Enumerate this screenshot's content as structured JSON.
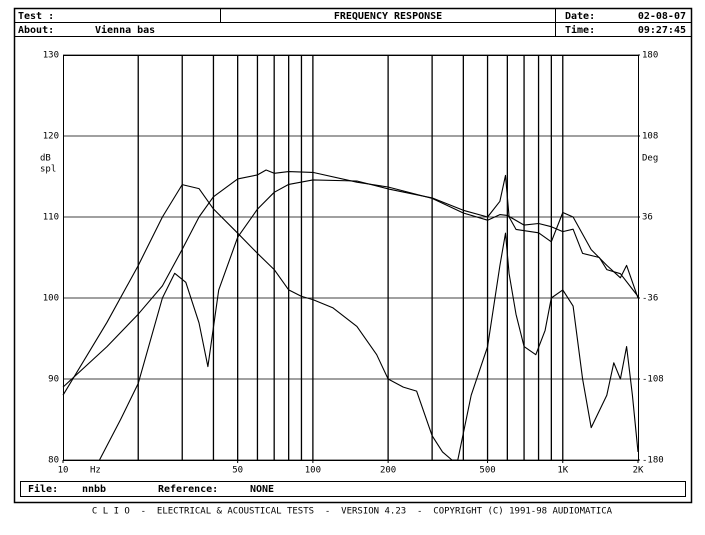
{
  "header": {
    "test_label": "Test :",
    "about_label": "About:",
    "about": "Vienna bas",
    "date_label": "Date:",
    "date": "02-08-07",
    "time_label": "Time:",
    "time": "09:27:45"
  },
  "footer": {
    "file_label": "File:",
    "file": "nnbb",
    "reference_label": "Reference:",
    "reference": "NONE",
    "copyright": "C L I O  -  ELECTRICAL & ACOUSTICAL TESTS  -  VERSION 4.23  -  COPYRIGHT (C) 1991-98 AUDIOMATICA"
  },
  "chart_data": {
    "type": "line",
    "title": "FREQUENCY RESPONSE",
    "ylabel": [
      "dB",
      "spl"
    ],
    "y2label": "Deg",
    "xlabel": "Hz",
    "log_x": true,
    "grid": true,
    "color": "#000000",
    "xlim": [
      10,
      2000
    ],
    "xticks": [
      10,
      50,
      100,
      200,
      500,
      {
        "value": 1000,
        "label": "1K"
      },
      {
        "value": 2000,
        "label": "2K"
      }
    ],
    "xgrid": [
      20,
      30,
      40,
      50,
      60,
      70,
      80,
      90,
      100,
      200,
      300,
      400,
      500,
      600,
      700,
      800,
      900,
      1000
    ],
    "ylim": [
      80,
      130
    ],
    "yticks": [
      80,
      90,
      100,
      110,
      120,
      130
    ],
    "y2lim": [
      -180,
      180
    ],
    "y2ticks": [
      -180,
      -108,
      -36,
      36,
      108,
      180
    ],
    "series": [
      {
        "x": [
          10,
          15,
          20,
          25,
          30,
          35,
          40,
          50,
          60,
          70,
          80,
          90,
          100,
          120,
          150,
          180,
          200,
          230,
          260,
          300,
          330,
          360,
          380,
          430,
          500,
          560,
          590,
          610,
          650,
          700,
          780,
          850,
          900,
          1000,
          1100,
          1200,
          1300,
          1500,
          1600,
          1700,
          1800,
          1900,
          2000
        ],
        "values": [
          88,
          97,
          104,
          110,
          114,
          113.5,
          111,
          108,
          105.5,
          103.5,
          101,
          100.2,
          99.8,
          98.8,
          96.5,
          93,
          90,
          89,
          88.5,
          83,
          81,
          80,
          80,
          88,
          94,
          104,
          108,
          103,
          98,
          94,
          93,
          96,
          100,
          101,
          99,
          90,
          84,
          88,
          92,
          90,
          94,
          88,
          81
        ]
      },
      {
        "x": [
          10,
          15,
          20,
          25,
          30,
          35,
          40,
          50,
          60,
          65,
          70,
          80,
          100,
          150,
          200,
          300,
          400,
          500,
          560,
          600,
          700,
          800,
          900,
          1000,
          1100,
          1200,
          1400,
          1500,
          1700,
          2000
        ],
        "values": [
          89,
          94,
          98,
          101.5,
          106,
          110,
          112.5,
          114.7,
          115.2,
          115.8,
          115.4,
          115.6,
          115.5,
          114.3,
          113.7,
          112.3,
          110.5,
          109.6,
          110.3,
          110.2,
          109,
          109.2,
          108.8,
          108.2,
          108.5,
          105.5,
          105,
          103.5,
          103,
          100.2
        ]
      },
      {
        "axis": "y2",
        "x": [
          14,
          17,
          20,
          25,
          28,
          31,
          35,
          38,
          42,
          50,
          60,
          70,
          80,
          100,
          150,
          200,
          300,
          400,
          500,
          560,
          590,
          610,
          650,
          800,
          900,
          1000,
          1100,
          1300,
          1500,
          1700,
          1800,
          2000
        ],
        "values": [
          -180,
          -144,
          -112,
          -36,
          -14,
          -22,
          -58,
          -97,
          -29,
          18,
          43,
          58,
          65,
          69,
          68,
          61,
          53,
          42,
          36,
          50,
          73,
          36,
          25,
          22,
          14,
          40,
          36,
          7,
          -7,
          -18,
          -7,
          -36
        ]
      }
    ]
  }
}
